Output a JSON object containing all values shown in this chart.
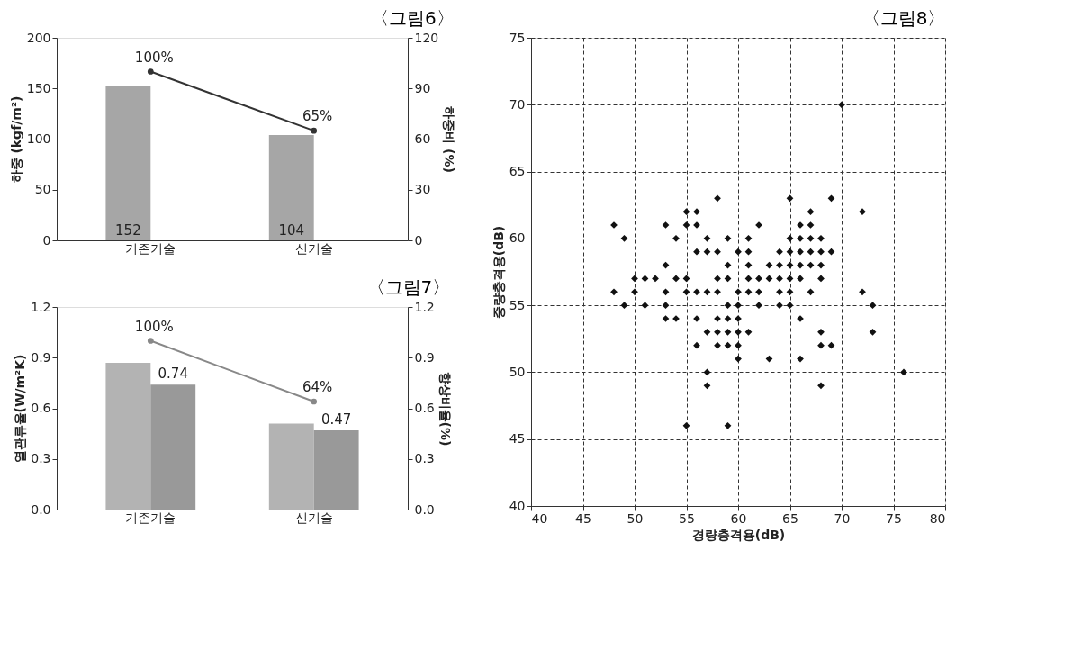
{
  "chart_data": [
    {
      "type": "bar",
      "title": "〈그림6〉",
      "categories": [
        "기존기술",
        "신기술"
      ],
      "ylabel": "하중 (kgf/m²)",
      "y2label": "하중비 (%)",
      "ylim": [
        0,
        200
      ],
      "yticks": [
        0,
        50,
        100,
        150,
        200
      ],
      "y2lim": [
        0,
        120
      ],
      "y2ticks": [
        0,
        30,
        60,
        90,
        120
      ],
      "marker": "circle",
      "series": [
        {
          "type": "bar",
          "color": "#a6a6a6",
          "values": [
            152,
            104
          ],
          "value_labels": [
            "152",
            "104"
          ]
        },
        {
          "type": "line",
          "axis": "y2",
          "color": "#333333",
          "values": [
            100,
            65
          ],
          "value_labels": [
            "100%",
            "65%"
          ]
        }
      ]
    },
    {
      "type": "bar",
      "title": "〈그림7〉",
      "categories": [
        "기존기술",
        "신기술"
      ],
      "ylabel": "열관류율(W/m²K)",
      "y2label": "향상비율(%)",
      "ylim": [
        0,
        1.2
      ],
      "yticks": [
        {
          "value": 0,
          "label": "0.0"
        },
        0.3,
        0.6,
        0.9,
        1.2
      ],
      "y2lim": [
        0,
        1.2
      ],
      "y2ticks": [
        {
          "value": 0,
          "label": "0.0"
        },
        0.3,
        0.6,
        0.9,
        1.2
      ],
      "marker": "circle",
      "series": [
        {
          "type": "bar",
          "color": "#b3b3b3",
          "values": [
            0.87,
            0.51
          ]
        },
        {
          "type": "bar",
          "color": "#999999",
          "values": [
            0.74,
            0.47
          ],
          "value_labels": [
            "0.74",
            "0.47"
          ]
        },
        {
          "type": "line",
          "axis": "y2",
          "color": "#888888",
          "values": [
            1.0,
            0.64
          ],
          "value_labels": [
            "100%",
            "64%"
          ]
        }
      ]
    },
    {
      "type": "scatter",
      "title": "〈그림8〉",
      "xlabel": "경량충격용(dB)",
      "ylabel": "중량충격용(dB)",
      "xlim": [
        40,
        80
      ],
      "xticks": [
        40,
        45,
        50,
        55,
        60,
        65,
        70,
        75,
        80
      ],
      "ylim": [
        40,
        75
      ],
      "yticks": [
        40,
        45,
        50,
        55,
        60,
        65,
        70,
        75
      ],
      "grid": true,
      "marker": "diamond",
      "series": [
        {
          "color": "#111111",
          "x": [
            58,
            65,
            69,
            55,
            56,
            67,
            72,
            48,
            53,
            55,
            56,
            62,
            66,
            67,
            49,
            54,
            57,
            59,
            61,
            65,
            66,
            67,
            68,
            56,
            57,
            58,
            60,
            61,
            64,
            65,
            66,
            67,
            68,
            69,
            53,
            59,
            61,
            63,
            64,
            65,
            66,
            67,
            68,
            50,
            51,
            52,
            54,
            55,
            58,
            59,
            61,
            62,
            63,
            64,
            65,
            66,
            68,
            48,
            50,
            53,
            55,
            56,
            57,
            58,
            60,
            61,
            62,
            64,
            65,
            67,
            72,
            49,
            51,
            53,
            59,
            60,
            62,
            64,
            65,
            73,
            53,
            54,
            56,
            58,
            59,
            60,
            66,
            57,
            58,
            59,
            60,
            61,
            68,
            73,
            56,
            58,
            59,
            60,
            68,
            69,
            60,
            63,
            66,
            57,
            76,
            57,
            68,
            55,
            59,
            70
          ],
          "values": [
            63,
            63,
            63,
            62,
            62,
            62,
            62,
            61,
            61,
            61,
            61,
            61,
            61,
            61,
            60,
            60,
            60,
            60,
            60,
            60,
            60,
            60,
            60,
            59,
            59,
            59,
            59,
            59,
            59,
            59,
            59,
            59,
            59,
            59,
            58,
            58,
            58,
            58,
            58,
            58,
            58,
            58,
            58,
            57,
            57,
            57,
            57,
            57,
            57,
            57,
            57,
            57,
            57,
            57,
            57,
            57,
            57,
            56,
            56,
            56,
            56,
            56,
            56,
            56,
            56,
            56,
            56,
            56,
            56,
            56,
            56,
            55,
            55,
            55,
            55,
            55,
            55,
            55,
            55,
            55,
            54,
            54,
            54,
            54,
            54,
            54,
            54,
            53,
            53,
            53,
            53,
            53,
            53,
            53,
            52,
            52,
            52,
            52,
            52,
            52,
            51,
            51,
            51,
            50,
            50,
            49,
            49,
            46,
            46,
            70
          ]
        }
      ]
    }
  ]
}
